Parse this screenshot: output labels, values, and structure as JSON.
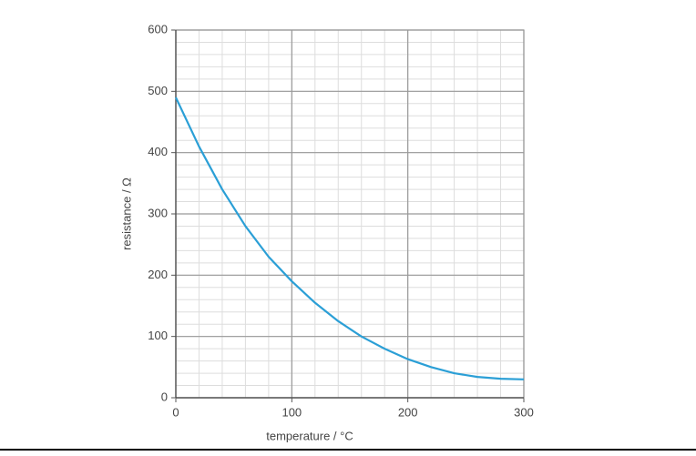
{
  "chart_data": {
    "type": "line",
    "x_label": "temperature / °C",
    "y_label": "resistance / Ω",
    "series": [
      {
        "name": "resistance",
        "color": "#2b9fd6",
        "x": [
          0,
          20,
          40,
          60,
          80,
          100,
          120,
          140,
          160,
          180,
          200,
          220,
          240,
          260,
          280,
          300
        ],
        "values": [
          490,
          410,
          340,
          280,
          230,
          190,
          155,
          125,
          100,
          80,
          63,
          50,
          40,
          34,
          31,
          30
        ]
      }
    ],
    "xlim": [
      0,
      300
    ],
    "xticks": [
      0,
      100,
      200,
      300
    ],
    "ylim": [
      0,
      600
    ],
    "yticks": [
      0,
      100,
      200,
      300,
      400,
      500,
      600
    ],
    "grid": true,
    "minor_grid_step": 20
  }
}
